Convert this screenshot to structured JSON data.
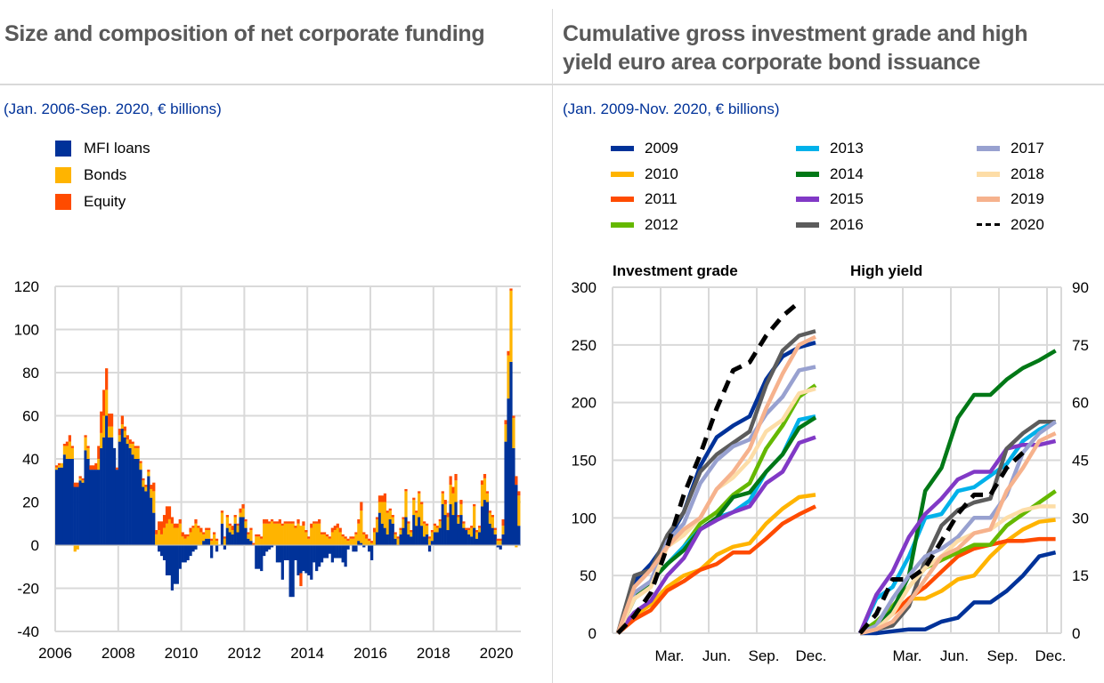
{
  "left": {
    "title": "Size and composition of net corporate funding",
    "subtitle": "(Jan. 2006-Sep. 2020, € billions)"
  },
  "right": {
    "title_line1": "Cumulative gross investment grade and high",
    "title_line2": "yield euro area corporate bond issuance",
    "subtitle": "(Jan. 2009-Nov. 2020, € billions)"
  },
  "chart_data": [
    {
      "type": "bar",
      "stacked": true,
      "frequency": "monthly",
      "start": "2006-01",
      "end": "2020-09",
      "ylim": [
        -40,
        120
      ],
      "yticks": [
        -40,
        -20,
        0,
        20,
        40,
        60,
        80,
        100,
        120
      ],
      "xticks": [
        "2006",
        "2008",
        "2010",
        "2012",
        "2014",
        "2016",
        "2018",
        "2020"
      ],
      "grid": true,
      "legend_placement": "top-left",
      "series": [
        {
          "name": "MFI loans",
          "color": "#003299",
          "values": [
            35,
            36,
            36,
            42,
            40,
            40,
            40,
            27,
            27,
            30,
            29,
            44,
            40,
            35,
            35,
            35,
            35,
            45,
            50,
            60,
            50,
            50,
            45,
            35,
            48,
            54,
            50,
            47,
            45,
            42,
            40,
            40,
            35,
            27,
            25,
            32,
            22,
            15,
            0,
            -3,
            -5,
            -7,
            -14,
            -14,
            -21,
            -18,
            -18,
            -11,
            -8,
            -8,
            -7,
            -5,
            -3,
            -2,
            0,
            0,
            2,
            3,
            3,
            -6,
            0,
            -3,
            0,
            10,
            -2,
            8,
            6,
            5,
            10,
            6,
            13,
            13,
            8,
            3,
            2,
            0,
            -11,
            -11,
            -12,
            -5,
            -3,
            -2,
            -1,
            0,
            -8,
            -8,
            -16,
            -7,
            -7,
            -24,
            -24,
            -7,
            -14,
            -13,
            -12,
            -13,
            -14,
            -16,
            -8,
            -12,
            -10,
            -8,
            -6,
            -6,
            -4,
            -8,
            -6,
            -6,
            -6,
            -8,
            -10,
            -2,
            0,
            -3,
            -3,
            2,
            1,
            -1,
            0,
            -3,
            -7,
            0,
            6,
            15,
            10,
            8,
            5,
            12,
            10,
            3,
            0,
            5,
            8,
            13,
            5,
            4,
            14,
            9,
            13,
            9,
            4,
            5,
            -3,
            2,
            6,
            6,
            8,
            19,
            14,
            7,
            19,
            14,
            20,
            10,
            14,
            8,
            7,
            5,
            4,
            8,
            3,
            6,
            18,
            21,
            20,
            10,
            8,
            5,
            -1,
            -2,
            5,
            48,
            68,
            85,
            45,
            28,
            9
          ]
        },
        {
          "name": "Bonds",
          "color": "#FFB400",
          "values": [
            1,
            1,
            2,
            4,
            6,
            8,
            5,
            -3,
            -2,
            1,
            1,
            6,
            5,
            0,
            0,
            0,
            5,
            7,
            10,
            12,
            5,
            5,
            0,
            0,
            3,
            2,
            3,
            2,
            2,
            5,
            5,
            5,
            3,
            3,
            2,
            2,
            4,
            10,
            5,
            7,
            5,
            8,
            10,
            12,
            10,
            8,
            8,
            10,
            4,
            3,
            4,
            6,
            8,
            10,
            8,
            6,
            3,
            4,
            4,
            2,
            5,
            2,
            0,
            5,
            3,
            5,
            3,
            2,
            3,
            3,
            2,
            4,
            3,
            2,
            5,
            0,
            4,
            4,
            3,
            10,
            10,
            10,
            11,
            10,
            10,
            10,
            9,
            10,
            10,
            10,
            10,
            8,
            10,
            9,
            9,
            6,
            3,
            8,
            10,
            10,
            10,
            5,
            5,
            4,
            3,
            6,
            7,
            8,
            6,
            4,
            3,
            2,
            3,
            3,
            5,
            8,
            15,
            5,
            3,
            2,
            1,
            6,
            6,
            5,
            10,
            12,
            10,
            4,
            3,
            2,
            3,
            2,
            4,
            12,
            5,
            2,
            7,
            6,
            11,
            10,
            6,
            4,
            3,
            4,
            3,
            2,
            3,
            5,
            5,
            6,
            9,
            10,
            10,
            3,
            5,
            2,
            0,
            2,
            4,
            10,
            3,
            2,
            10,
            10,
            4,
            5,
            5,
            2,
            2,
            2,
            4,
            8,
            20,
            33,
            14,
            -1,
            14
          ]
        },
        {
          "name": "Equity",
          "color": "#FF4B00",
          "values": [
            1,
            1,
            0,
            1,
            2,
            3,
            1,
            2,
            2,
            1,
            1,
            1,
            1,
            2,
            2,
            3,
            6,
            10,
            12,
            10,
            6,
            6,
            0,
            1,
            3,
            4,
            2,
            2,
            2,
            1,
            1,
            1,
            1,
            1,
            1,
            1,
            2,
            4,
            2,
            4,
            6,
            6,
            8,
            6,
            3,
            2,
            2,
            2,
            2,
            2,
            1,
            2,
            1,
            2,
            1,
            2,
            1,
            1,
            1,
            1,
            1,
            1,
            0,
            1,
            1,
            1,
            1,
            2,
            1,
            1,
            2,
            2,
            1,
            1,
            1,
            1,
            1,
            1,
            1,
            2,
            2,
            1,
            1,
            1,
            1,
            2,
            1,
            1,
            1,
            1,
            1,
            1,
            2,
            -6,
            2,
            1,
            1,
            2,
            1,
            1,
            2,
            1,
            1,
            1,
            1,
            2,
            2,
            2,
            2,
            1,
            1,
            1,
            1,
            1,
            1,
            2,
            4,
            1,
            2,
            1,
            1,
            2,
            1,
            3,
            3,
            4,
            1,
            1,
            1,
            1,
            1,
            1,
            1,
            1,
            1,
            1,
            1,
            1,
            1,
            1,
            1,
            1,
            1,
            1,
            1,
            1,
            1,
            1,
            2,
            2,
            4,
            3,
            3,
            1,
            2,
            1,
            1,
            1,
            1,
            1,
            1,
            1,
            2,
            2,
            1,
            1,
            1,
            1,
            1,
            1,
            3,
            2,
            2,
            1,
            1,
            4,
            2
          ]
        }
      ]
    },
    {
      "type": "line",
      "panels": [
        {
          "title": "Investment grade",
          "axis": "left",
          "ylim": [
            0,
            300
          ],
          "yticks": [
            0,
            50,
            100,
            150,
            200,
            250,
            300
          ]
        },
        {
          "title": "High yield",
          "axis": "right",
          "ylim": [
            0,
            90
          ],
          "yticks": [
            0,
            15,
            30,
            45,
            60,
            75,
            90
          ]
        }
      ],
      "xticks": [
        "Mar.",
        "Jun.",
        "Sep.",
        "Dec."
      ],
      "grid": true,
      "legend_placement": "top",
      "series": [
        {
          "name": "2009",
          "color": "#003299",
          "ig": [
            0,
            45,
            60,
            80,
            105,
            145,
            170,
            180,
            188,
            220,
            240,
            248,
            252
          ],
          "hy": [
            0,
            0,
            0.5,
            1,
            1,
            3,
            4,
            8,
            8,
            11,
            15,
            20,
            21
          ]
        },
        {
          "name": "2010",
          "color": "#FFB400",
          "ig": [
            0,
            15,
            25,
            40,
            50,
            55,
            68,
            75,
            78,
            95,
            108,
            118,
            120
          ],
          "hy": [
            0,
            2,
            5,
            9,
            9,
            11,
            14,
            15,
            20,
            24,
            27,
            29,
            29.5
          ]
        },
        {
          "name": "2011",
          "color": "#FF4B00",
          "ig": [
            0,
            12,
            20,
            37,
            45,
            55,
            60,
            70,
            70,
            82,
            95,
            103,
            110
          ],
          "hy": [
            0,
            2,
            5,
            9,
            12,
            16,
            20,
            22,
            23,
            24,
            24,
            24.5,
            24.5
          ]
        },
        {
          "name": "2012",
          "color": "#65B800",
          "ig": [
            0,
            30,
            45,
            60,
            75,
            95,
            105,
            120,
            130,
            160,
            180,
            205,
            215
          ],
          "hy": [
            0,
            3,
            7,
            12,
            17,
            19,
            21,
            23,
            23,
            28,
            31,
            34,
            37
          ]
        },
        {
          "name": "2013",
          "color": "#00B1EA",
          "ig": [
            0,
            30,
            45,
            60,
            75,
            90,
            100,
            105,
            115,
            140,
            155,
            185,
            188
          ],
          "hy": [
            0,
            9,
            12,
            20,
            30,
            31,
            37,
            38,
            41,
            44,
            50,
            53,
            55
          ]
        },
        {
          "name": "2014",
          "color": "#007816",
          "ig": [
            0,
            30,
            45,
            60,
            72,
            90,
            100,
            118,
            122,
            140,
            155,
            178,
            187
          ],
          "hy": [
            0,
            2,
            6,
            15,
            37,
            43,
            56,
            62,
            62,
            66,
            69,
            71,
            73.5
          ]
        },
        {
          "name": "2015",
          "color": "#8139C6",
          "ig": [
            0,
            18,
            28,
            50,
            65,
            90,
            98,
            105,
            110,
            130,
            140,
            165,
            170
          ],
          "hy": [
            0,
            10,
            16,
            25,
            31,
            35,
            40,
            42,
            42,
            48,
            49,
            49,
            50
          ]
        },
        {
          "name": "2016",
          "color": "#5C5C5C",
          "ig": [
            0,
            50,
            55,
            85,
            105,
            140,
            155,
            165,
            175,
            215,
            245,
            258,
            262
          ],
          "hy": [
            0,
            1,
            2,
            7,
            19,
            28,
            32,
            34,
            35,
            48,
            52,
            55,
            55
          ]
        },
        {
          "name": "2017",
          "color": "#98A1D0",
          "ig": [
            0,
            35,
            45,
            80,
            95,
            130,
            150,
            162,
            168,
            190,
            205,
            228,
            231
          ],
          "hy": [
            0,
            2,
            9,
            15,
            20,
            22,
            25,
            30,
            30,
            36,
            47,
            52,
            55
          ]
        },
        {
          "name": "2018",
          "color": "#FDDDA7",
          "ig": [
            0,
            30,
            40,
            75,
            85,
            100,
            125,
            135,
            150,
            175,
            185,
            208,
            212
          ],
          "hy": [
            0,
            1,
            5,
            12,
            17,
            20,
            24,
            26,
            27,
            30,
            32,
            33,
            33
          ]
        },
        {
          "name": "2019",
          "color": "#F6B28D",
          "ig": [
            0,
            40,
            55,
            75,
            90,
            100,
            125,
            140,
            160,
            195,
            225,
            250,
            257
          ],
          "hy": [
            0,
            1,
            3,
            8,
            14,
            20,
            22,
            26,
            27,
            37,
            43,
            50,
            52
          ]
        },
        {
          "name": "2020",
          "color": "#000000",
          "dashed": true,
          "ig": [
            0,
            15,
            35,
            75,
            120,
            155,
            195,
            228,
            235,
            258,
            275,
            287
          ],
          "hy": [
            0,
            5,
            14,
            14,
            17,
            24,
            31,
            36,
            36,
            43,
            47
          ]
        }
      ]
    }
  ]
}
